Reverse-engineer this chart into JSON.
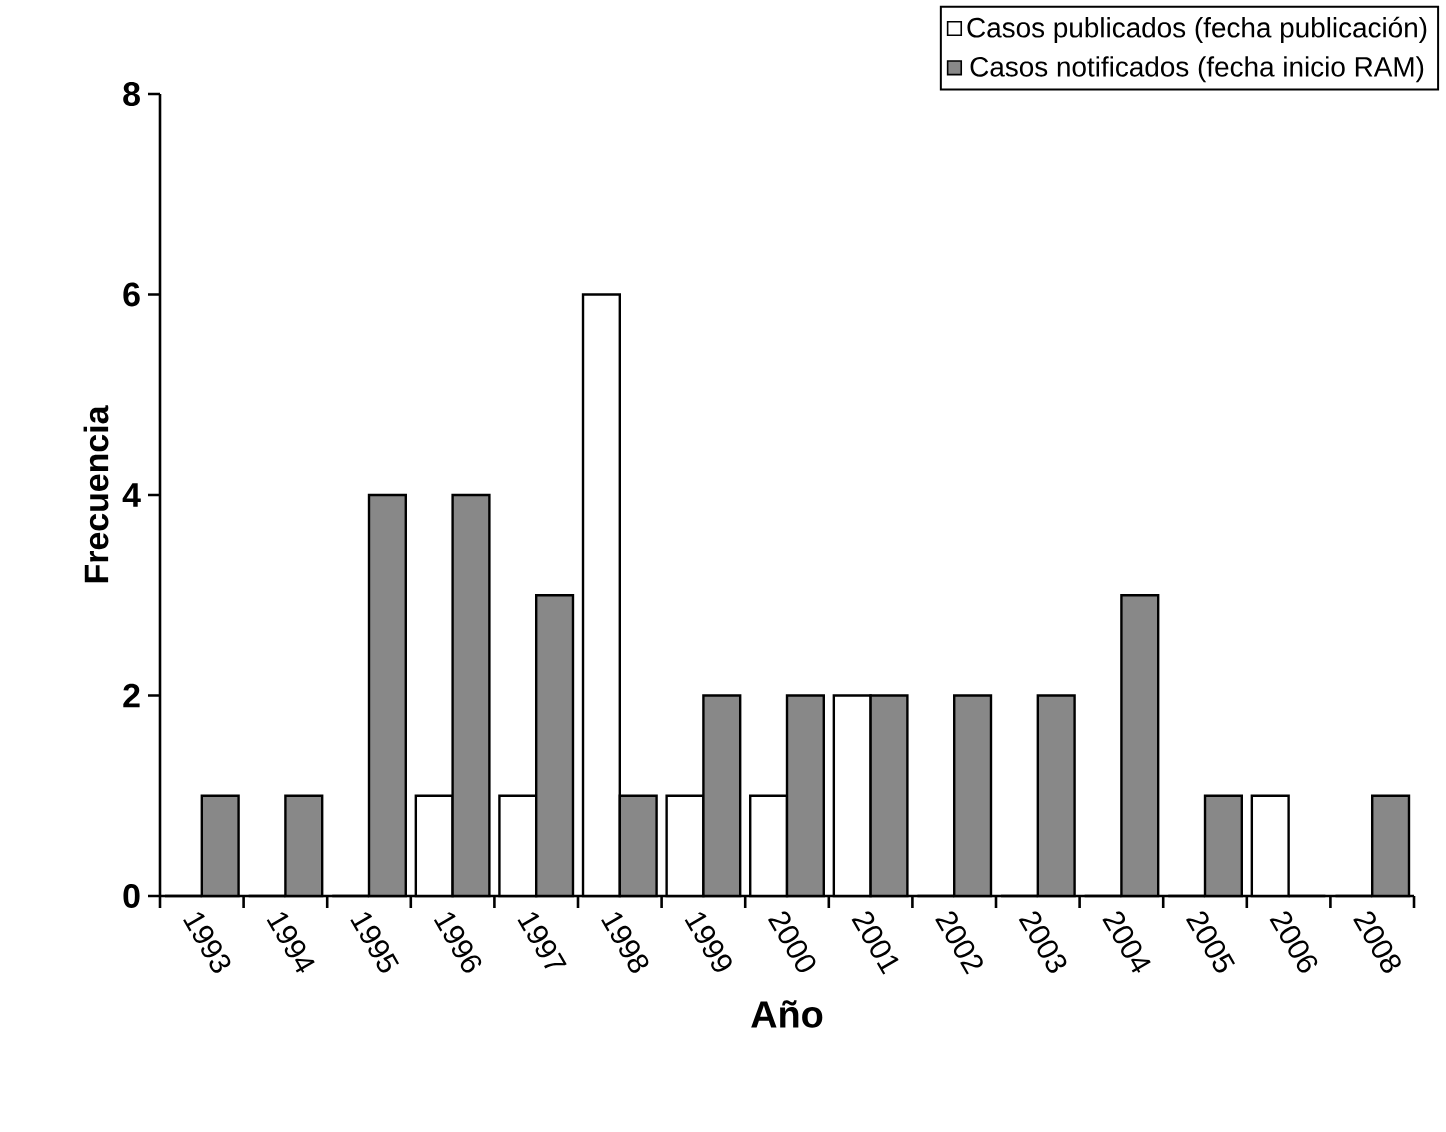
{
  "chart_data": {
    "type": "bar",
    "xlabel": "Año",
    "ylabel": "Frecuencia",
    "categories": [
      "1993",
      "1994",
      "1995",
      "1996",
      "1997",
      "1998",
      "1999",
      "2000",
      "2001",
      "2002",
      "2003",
      "2004",
      "2005",
      "2006",
      "2008"
    ],
    "series": [
      {
        "name": "Casos publicados (fecha publicación)",
        "color": "#ffffff",
        "values": [
          0,
          0,
          0,
          1,
          1,
          6,
          1,
          1,
          2,
          0,
          0,
          0,
          0,
          1,
          0
        ]
      },
      {
        "name": "Casos notificados (fecha inicio RAM)",
        "color": "#888888",
        "values": [
          1,
          1,
          4,
          4,
          3,
          1,
          2,
          2,
          2,
          2,
          2,
          3,
          1,
          0,
          1
        ]
      }
    ],
    "ylim": [
      0,
      8
    ],
    "yticks": [
      0,
      2,
      4,
      6,
      8
    ],
    "grid": false,
    "legend": "top right"
  }
}
